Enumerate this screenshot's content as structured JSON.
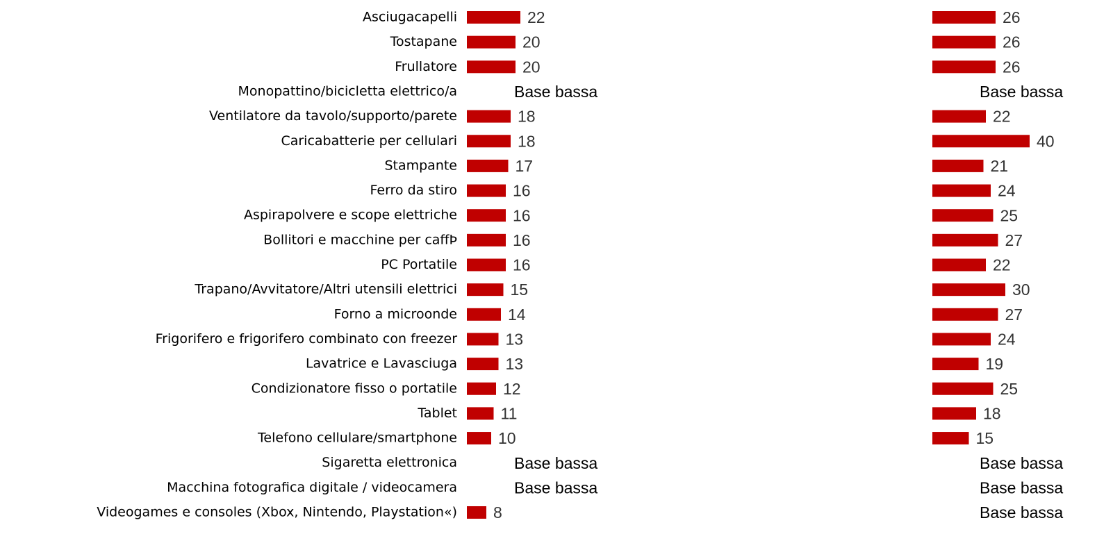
{
  "chart_data": {
    "type": "bar",
    "orientation": "horizontal",
    "categories": [
      "Asciugacapelli",
      "Tostapane",
      "Frullatore",
      "Monopattino/bicicletta elettrico/a",
      "Ventilatore da tavolo/supporto/parete",
      "Caricabatterie per cellulari",
      "Stampante",
      "Ferro da stiro",
      "Aspirapolvere e scope elettriche",
      "Bollitori e macchine per caffÞ",
      "PC Portatile",
      "Trapano/Avvitatore/Altri utensili elettrici",
      "Forno a microonde",
      "Frigorifero e frigorifero combinato con freezer",
      "Lavatrice e Lavasciuga",
      "Condizionatore fisso o portatile",
      "Tablet",
      "Telefono cellulare/smartphone",
      "Sigaretta elettronica",
      "Macchina fotografica digitale / videocamera",
      "Videogames e consoles (Xbox, Nintendo, Playstation«)"
    ],
    "series": [
      {
        "color": "#c00000",
        "values": [
          22,
          20,
          20,
          null,
          18,
          18,
          17,
          16,
          16,
          16,
          16,
          15,
          14,
          13,
          13,
          12,
          11,
          10,
          null,
          null,
          8
        ],
        "value_labels": [
          null,
          null,
          null,
          "Base bassa",
          null,
          null,
          null,
          null,
          null,
          null,
          null,
          null,
          null,
          null,
          null,
          null,
          null,
          null,
          "Base bassa",
          "Base bassa",
          null
        ]
      },
      {
        "color": "#c00000",
        "values": [
          26,
          26,
          26,
          null,
          22,
          40,
          21,
          24,
          25,
          27,
          22,
          30,
          27,
          24,
          19,
          25,
          18,
          15,
          null,
          null,
          null
        ],
        "value_labels": [
          null,
          null,
          null,
          "Base bassa",
          null,
          null,
          null,
          null,
          null,
          null,
          null,
          null,
          null,
          null,
          null,
          null,
          null,
          null,
          "Base bassa",
          "Base bassa",
          "Base bassa"
        ]
      }
    ]
  }
}
